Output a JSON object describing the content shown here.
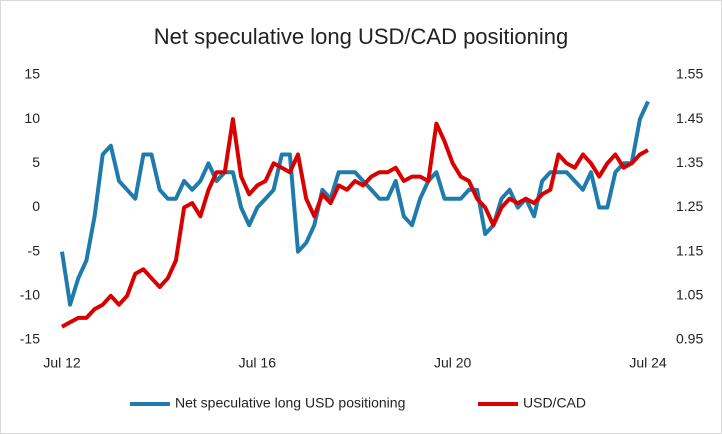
{
  "chart_data": {
    "type": "line",
    "title": "Net speculative long USD/CAD positioning",
    "categories": [
      "Jul 12",
      null,
      null,
      null,
      null,
      null,
      null,
      null,
      null,
      null,
      null,
      null,
      null,
      null,
      null,
      null,
      null,
      null,
      null,
      null,
      null,
      null,
      null,
      null,
      "Jul 16",
      null,
      null,
      null,
      null,
      null,
      null,
      null,
      null,
      null,
      null,
      null,
      null,
      null,
      null,
      null,
      null,
      null,
      null,
      null,
      null,
      null,
      null,
      null,
      "Jul 20",
      null,
      null,
      null,
      null,
      null,
      null,
      null,
      null,
      null,
      null,
      null,
      null,
      null,
      null,
      null,
      null,
      null,
      null,
      null,
      null,
      null,
      null,
      null,
      "Jul 24"
    ],
    "series": [
      {
        "name": "Net speculative long USD positioning",
        "color": "#1f7bab",
        "axis": "y",
        "values": [
          -5,
          -11,
          -8,
          -6,
          -1,
          6,
          7,
          3,
          2,
          1,
          6,
          6,
          2,
          1,
          1,
          3,
          2,
          3,
          5,
          3,
          4,
          4,
          0,
          -2,
          0,
          1,
          2,
          6,
          6,
          -5,
          -4,
          -2,
          2,
          1,
          4,
          4,
          4,
          3,
          2,
          1,
          1,
          3,
          -1,
          -2,
          1,
          3,
          4,
          1,
          1,
          1,
          2,
          2,
          -3,
          -2,
          1,
          2,
          0,
          1,
          -1,
          3,
          4,
          4,
          4,
          3,
          2,
          4,
          0,
          0,
          4,
          5,
          5,
          10,
          12
        ]
      },
      {
        "name": "USD/CAD",
        "color": "#d90000",
        "axis": "y2",
        "values": [
          0.98,
          0.99,
          1.0,
          1.0,
          1.02,
          1.03,
          1.05,
          1.03,
          1.05,
          1.1,
          1.11,
          1.09,
          1.07,
          1.09,
          1.13,
          1.25,
          1.26,
          1.23,
          1.29,
          1.33,
          1.33,
          1.45,
          1.32,
          1.28,
          1.3,
          1.31,
          1.35,
          1.34,
          1.33,
          1.37,
          1.27,
          1.23,
          1.28,
          1.26,
          1.3,
          1.29,
          1.31,
          1.3,
          1.32,
          1.33,
          1.33,
          1.34,
          1.31,
          1.32,
          1.32,
          1.31,
          1.44,
          1.4,
          1.35,
          1.32,
          1.31,
          1.27,
          1.25,
          1.21,
          1.25,
          1.27,
          1.26,
          1.27,
          1.26,
          1.28,
          1.29,
          1.37,
          1.35,
          1.34,
          1.37,
          1.35,
          1.32,
          1.35,
          1.37,
          1.34,
          1.35,
          1.37,
          1.38
        ]
      }
    ],
    "ylim": [
      -15,
      15
    ],
    "yticks": [
      -15,
      -10,
      -5,
      0,
      5,
      10,
      15
    ],
    "y2lim": [
      0.95,
      1.55
    ],
    "y2ticks": [
      0.95,
      1.05,
      1.15,
      1.25,
      1.35,
      1.45,
      1.55
    ],
    "legend": "bottom",
    "grid": false
  }
}
